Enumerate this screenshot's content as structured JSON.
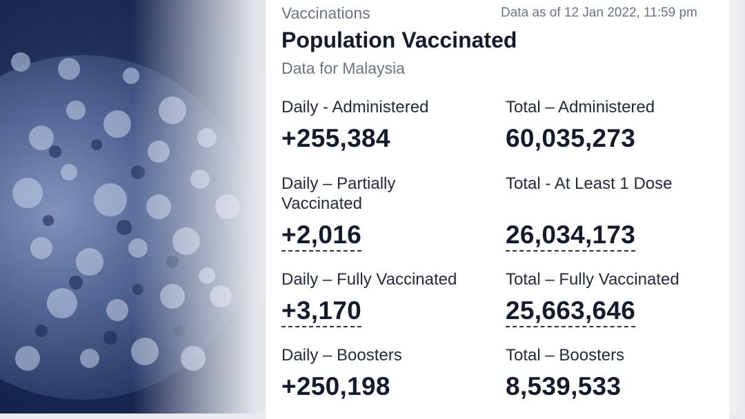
{
  "header": {
    "section": "Vaccinations",
    "as_of": "Data as of 12 Jan 2022, 11:59 pm",
    "title": "Population Vaccinated",
    "subtitle": "Data for Malaysia"
  },
  "stats": {
    "daily_administered": {
      "label": "Daily - Administered",
      "value": "+255,384"
    },
    "total_administered": {
      "label": "Total – Administered",
      "value": "60,035,273"
    },
    "daily_partial": {
      "label_line1": "Daily – Partially",
      "label_line2": "Vaccinated",
      "value": "+2,016"
    },
    "total_one_dose": {
      "label": "Total - At Least 1 Dose",
      "value": "26,034,173"
    },
    "daily_full": {
      "label": "Daily – Fully Vaccinated",
      "value": "+3,170"
    },
    "total_full": {
      "label": "Total – Fully Vaccinated",
      "value": "25,663,646"
    },
    "daily_boosters": {
      "label": "Daily – Boosters",
      "value": "+250,198"
    },
    "total_boosters": {
      "label": "Total – Boosters",
      "value": "8,539,533"
    }
  },
  "colors": {
    "hero_dark": "#14204a",
    "hero_mid": "#3a4f7f",
    "text_primary": "#141b2b",
    "text_muted": "#6b7383"
  },
  "hero_image": {
    "icon": "coronavirus-illustration"
  }
}
